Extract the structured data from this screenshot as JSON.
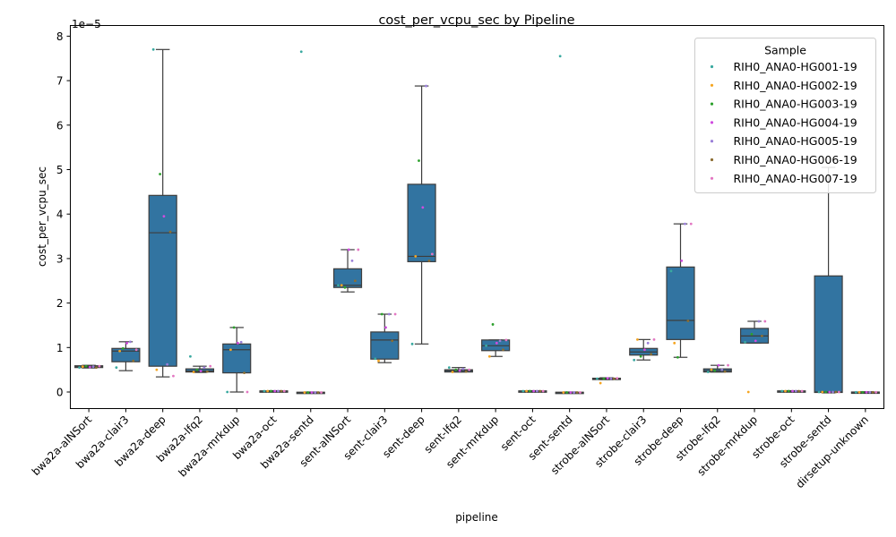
{
  "chart_data": {
    "type": "box",
    "title": "cost_per_vcpu_sec by Pipeline",
    "xlabel": "pipeline",
    "ylabel": "cost_per_vcpu_sec",
    "y_multiplier_label": "1e−5",
    "y_scale_exponent": -5,
    "ylim": [
      -0.35,
      8.1
    ],
    "yticks": [
      "0",
      "1",
      "2",
      "3",
      "4",
      "5",
      "6",
      "7",
      "8"
    ],
    "box_color": "#3274a1",
    "grid": false,
    "legend_position": "top-right",
    "legend_title": "Sample",
    "samples": [
      {
        "name": "RIH0_ANA0-HG001-19",
        "color": "#3aa9a0"
      },
      {
        "name": "RIH0_ANA0-HG002-19",
        "color": "#f5a623"
      },
      {
        "name": "RIH0_ANA0-HG003-19",
        "color": "#2ca02c"
      },
      {
        "name": "RIH0_ANA0-HG004-19",
        "color": "#d04ce0"
      },
      {
        "name": "RIH0_ANA0-HG005-19",
        "color": "#9a7fd8"
      },
      {
        "name": "RIH0_ANA0-HG006-19",
        "color": "#8c6d31"
      },
      {
        "name": "RIH0_ANA0-HG007-19",
        "color": "#e377c2"
      }
    ],
    "pipelines": [
      {
        "label": "bwa2a-alNSort",
        "whislo": 0.54,
        "q1": 0.55,
        "median": 0.57,
        "q3": 0.59,
        "whishi": 0.6,
        "points": [
          0.55,
          0.57,
          0.58,
          0.56,
          0.57,
          0.55,
          0.58
        ]
      },
      {
        "label": "bwa2a-clair3",
        "whislo": 0.48,
        "q1": 0.68,
        "median": 0.92,
        "q3": 0.98,
        "whishi": 1.13,
        "points": [
          0.55,
          0.92,
          0.98,
          1.1,
          1.13,
          0.7,
          0.95
        ]
      },
      {
        "label": "bwa2a-deep",
        "whislo": 0.34,
        "q1": 0.58,
        "median": 3.58,
        "q3": 4.42,
        "whishi": 7.7,
        "points": [
          7.7,
          0.5,
          4.9,
          3.95,
          0.62,
          3.6,
          0.36
        ]
      },
      {
        "label": "bwa2a-lfq2",
        "whislo": 0.44,
        "q1": 0.45,
        "median": 0.47,
        "q3": 0.52,
        "whishi": 0.58,
        "points": [
          0.8,
          0.45,
          0.5,
          0.47,
          0.55,
          0.46,
          0.58
        ]
      },
      {
        "label": "bwa2a-mrkdup",
        "whislo": 0.0,
        "q1": 0.43,
        "median": 0.95,
        "q3": 1.08,
        "whishi": 1.45,
        "points": [
          0.0,
          0.95,
          1.45,
          1.1,
          1.12,
          0.43,
          0.0
        ]
      },
      {
        "label": "bwa2a-oct",
        "whislo": 0.01,
        "q1": 0.015,
        "median": 0.02,
        "q3": 0.025,
        "whishi": 0.03,
        "points": [
          0.02,
          0.02,
          0.02,
          0.02,
          0.02,
          0.02,
          0.02
        ]
      },
      {
        "label": "bwa2a-sentd",
        "whislo": -0.02,
        "q1": -0.015,
        "median": -0.01,
        "q3": -0.005,
        "whishi": 0.0,
        "points": [
          7.65,
          -0.01,
          -0.01,
          -0.01,
          -0.01,
          -0.01,
          -0.01
        ]
      },
      {
        "label": "sent-alNSort",
        "whislo": 2.25,
        "q1": 2.35,
        "median": 2.4,
        "q3": 2.77,
        "whishi": 3.2,
        "points": [
          2.4,
          2.4,
          2.35,
          3.2,
          2.95,
          2.5,
          3.2
        ]
      },
      {
        "label": "sent-clair3",
        "whislo": 0.66,
        "q1": 0.74,
        "median": 1.17,
        "q3": 1.35,
        "whishi": 1.75,
        "points": [
          0.75,
          0.7,
          1.75,
          1.45,
          1.75,
          1.15,
          1.75
        ]
      },
      {
        "label": "sent-deep",
        "whislo": 1.08,
        "q1": 2.93,
        "median": 3.05,
        "q3": 4.67,
        "whishi": 6.88,
        "points": [
          1.08,
          3.05,
          5.2,
          4.15,
          6.88,
          2.95,
          3.1
        ]
      },
      {
        "label": "sent-lfq2",
        "whislo": 0.45,
        "q1": 0.45,
        "median": 0.48,
        "q3": 0.5,
        "whishi": 0.55,
        "points": [
          0.55,
          0.45,
          0.5,
          0.48,
          0.52,
          0.46,
          0.5
        ]
      },
      {
        "label": "sent-mrkdup",
        "whislo": 0.8,
        "q1": 0.93,
        "median": 1.04,
        "q3": 1.17,
        "whishi": 1.17,
        "points": [
          1.04,
          0.8,
          1.52,
          1.1,
          1.15,
          0.95,
          1.17
        ]
      },
      {
        "label": "sent-oct",
        "whislo": 0.01,
        "q1": 0.015,
        "median": 0.02,
        "q3": 0.025,
        "whishi": 0.03,
        "points": [
          0.02,
          0.02,
          0.02,
          0.02,
          0.02,
          0.02,
          0.02
        ]
      },
      {
        "label": "sent-sentd",
        "whislo": -0.02,
        "q1": -0.015,
        "median": -0.01,
        "q3": -0.005,
        "whishi": 0.0,
        "points": [
          7.55,
          -0.01,
          -0.01,
          -0.01,
          -0.01,
          -0.01,
          -0.01
        ]
      },
      {
        "label": "strobe-alNSort",
        "whislo": 0.28,
        "q1": 0.29,
        "median": 0.3,
        "q3": 0.31,
        "whishi": 0.32,
        "points": [
          0.3,
          0.2,
          0.3,
          0.31,
          0.3,
          0.3,
          0.31
        ]
      },
      {
        "label": "strobe-clair3",
        "whislo": 0.72,
        "q1": 0.83,
        "median": 0.9,
        "q3": 0.98,
        "whishi": 1.18,
        "points": [
          0.72,
          1.18,
          0.8,
          0.95,
          1.1,
          0.85,
          1.18
        ]
      },
      {
        "label": "strobe-deep",
        "whislo": 0.78,
        "q1": 1.18,
        "median": 1.61,
        "q3": 2.81,
        "whishi": 3.78,
        "points": [
          2.72,
          1.1,
          0.78,
          2.95,
          3.78,
          1.6,
          3.78
        ]
      },
      {
        "label": "strobe-lfq2",
        "whislo": 0.45,
        "q1": 0.45,
        "median": 0.48,
        "q3": 0.52,
        "whishi": 0.6,
        "points": [
          0.45,
          0.5,
          0.48,
          0.6,
          0.5,
          0.46,
          0.6
        ]
      },
      {
        "label": "strobe-mrkdup",
        "whislo": 1.1,
        "q1": 1.1,
        "median": 1.26,
        "q3": 1.43,
        "whishi": 1.59,
        "points": [
          1.12,
          0.0,
          1.3,
          1.15,
          1.59,
          1.26,
          1.59
        ]
      },
      {
        "label": "strobe-oct",
        "whislo": 0.01,
        "q1": 0.015,
        "median": 0.02,
        "q3": 0.025,
        "whishi": 0.03,
        "points": [
          0.02,
          0.02,
          0.02,
          0.02,
          0.02,
          0.02,
          0.02
        ]
      },
      {
        "label": "strobe-sentd",
        "whislo": -0.02,
        "q1": -0.01,
        "median": 0.0,
        "q3": 2.61,
        "whishi": 5.05,
        "points": [
          0.0,
          0.0,
          0.0,
          0.0,
          0.0,
          0.0,
          0.0
        ]
      },
      {
        "label": "dirsetup-unknown",
        "whislo": -0.015,
        "q1": -0.01,
        "median": -0.005,
        "q3": 0.0,
        "whishi": 0.005,
        "points": [
          -0.005,
          -0.005,
          -0.005,
          -0.005,
          -0.005,
          -0.005,
          -0.005
        ]
      }
    ]
  }
}
